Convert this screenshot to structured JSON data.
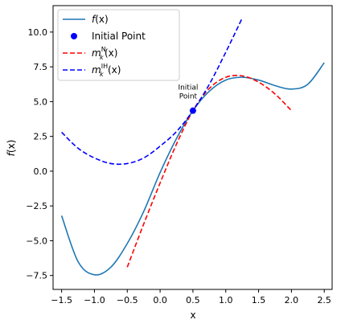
{
  "chart_data": {
    "type": "line",
    "xlabel": "x",
    "ylabel": "f(x)",
    "xlim": [
      -1.63,
      2.62
    ],
    "ylim": [
      -8.5,
      11.9
    ],
    "grid": false,
    "legend_position": "top-left",
    "x_ticks": [
      -1.5,
      -1.0,
      -0.5,
      0.0,
      0.5,
      1.0,
      1.5,
      2.0,
      2.5
    ],
    "x_tick_labels": [
      "−1.5",
      "−1.0",
      "−0.5",
      "0.0",
      "0.5",
      "1.0",
      "1.5",
      "2.0",
      "2.5"
    ],
    "y_ticks": [
      -7.5,
      -5.0,
      -2.5,
      0.0,
      2.5,
      5.0,
      7.5,
      10.0
    ],
    "y_tick_labels": [
      "−7.5",
      "−5.0",
      "−2.5",
      "0.0",
      "2.5",
      "5.0",
      "7.5",
      "10.0"
    ],
    "series": [
      {
        "name": "f(x)",
        "style": "solid",
        "color": "#1f77b4",
        "x": [
          -1.5,
          -1.25,
          -1.0,
          -0.75,
          -0.5,
          -0.25,
          0.0,
          0.25,
          0.5,
          0.75,
          1.0,
          1.25,
          1.5,
          1.75,
          2.0,
          2.25,
          2.5
        ],
        "y": [
          -3.2,
          -6.5,
          -7.45,
          -6.9,
          -5.2,
          -2.9,
          -0.1,
          2.35,
          4.35,
          5.75,
          6.55,
          6.75,
          6.55,
          6.15,
          5.9,
          6.25,
          7.8
        ]
      },
      {
        "name": "m_k^N(x)",
        "style": "dashed",
        "color": "#ff0000",
        "x": [
          -0.5,
          -0.25,
          0.0,
          0.25,
          0.5,
          0.75,
          1.0,
          1.25,
          1.5,
          1.75,
          2.0
        ],
        "y": [
          -6.9,
          -3.8,
          -0.85,
          1.95,
          4.35,
          5.95,
          6.75,
          6.85,
          6.4,
          5.55,
          4.35
        ]
      },
      {
        "name": "m_k^IH(x)",
        "style": "dashed",
        "color": "#0000ff",
        "x": [
          -1.5,
          -1.25,
          -1.0,
          -0.75,
          -0.5,
          -0.25,
          0.0,
          0.25,
          0.5,
          0.75,
          1.0,
          1.25
        ],
        "y": [
          2.8,
          1.65,
          0.95,
          0.55,
          0.55,
          0.95,
          1.8,
          2.85,
          4.35,
          6.25,
          8.55,
          11.0
        ]
      }
    ],
    "points": [
      {
        "name": "Initial Point",
        "x": 0.5,
        "y": 4.35,
        "color": "#0000ff"
      }
    ],
    "annotation": {
      "text_line1": "Initial",
      "text_line2": "Point",
      "x": 0.5,
      "y": 4.35
    },
    "legend": [
      {
        "kind": "line",
        "style": "solid",
        "color": "#1f77b4",
        "label_main": "f(x)",
        "label_sup": "",
        "label_sub": ""
      },
      {
        "kind": "marker",
        "color": "#0000ff",
        "label_main": "Initial Point",
        "label_sup": "",
        "label_sub": ""
      },
      {
        "kind": "line",
        "style": "dashed",
        "color": "#ff0000",
        "label_main": "m",
        "label_sup": "N",
        "label_sub": "k",
        "label_tail": "(x)"
      },
      {
        "kind": "line",
        "style": "dashed",
        "color": "#0000ff",
        "label_main": "m",
        "label_sup": "IH",
        "label_sub": "k",
        "label_tail": "(x)"
      }
    ]
  }
}
